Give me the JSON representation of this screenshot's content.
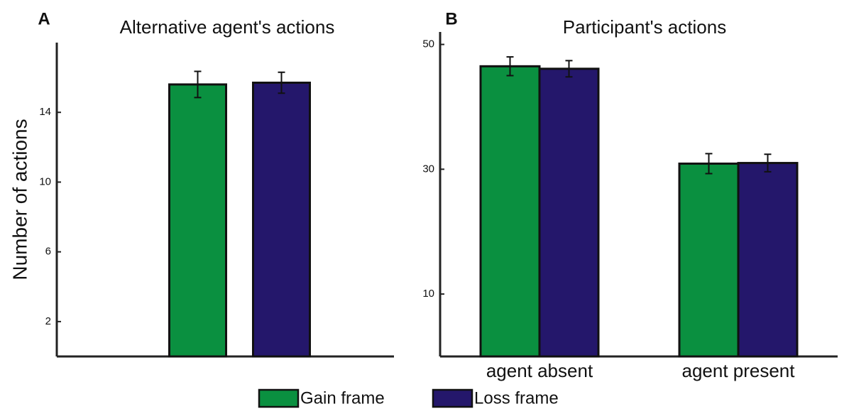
{
  "chart_data": [
    {
      "type": "bar",
      "panel_label": "A",
      "title": "Alternative agent's actions",
      "y_label": "Number of actions",
      "categories": [
        null
      ],
      "series": [
        {
          "name": "Gain frame",
          "color": "#0a9040",
          "values": [
            15.6
          ],
          "errors": [
            0.75
          ]
        },
        {
          "name": "Loss frame",
          "color": "#24176b",
          "values": [
            15.7
          ],
          "errors": [
            0.6
          ]
        }
      ],
      "ylim": [
        0,
        18
      ],
      "yticks": [
        2,
        6,
        10,
        14
      ]
    },
    {
      "type": "bar",
      "panel_label": "B",
      "title": "Participant's actions",
      "categories": [
        "agent absent",
        "agent present"
      ],
      "series": [
        {
          "name": "Gain frame",
          "color": "#0a9040",
          "values": [
            46.5,
            30.9
          ],
          "errors": [
            1.5,
            1.6
          ]
        },
        {
          "name": "Loss frame",
          "color": "#24176b",
          "values": [
            46.1,
            31.0
          ],
          "errors": [
            1.3,
            1.4
          ]
        }
      ],
      "ylim": [
        0,
        52
      ],
      "yticks": [
        10,
        30,
        50
      ]
    }
  ]
}
